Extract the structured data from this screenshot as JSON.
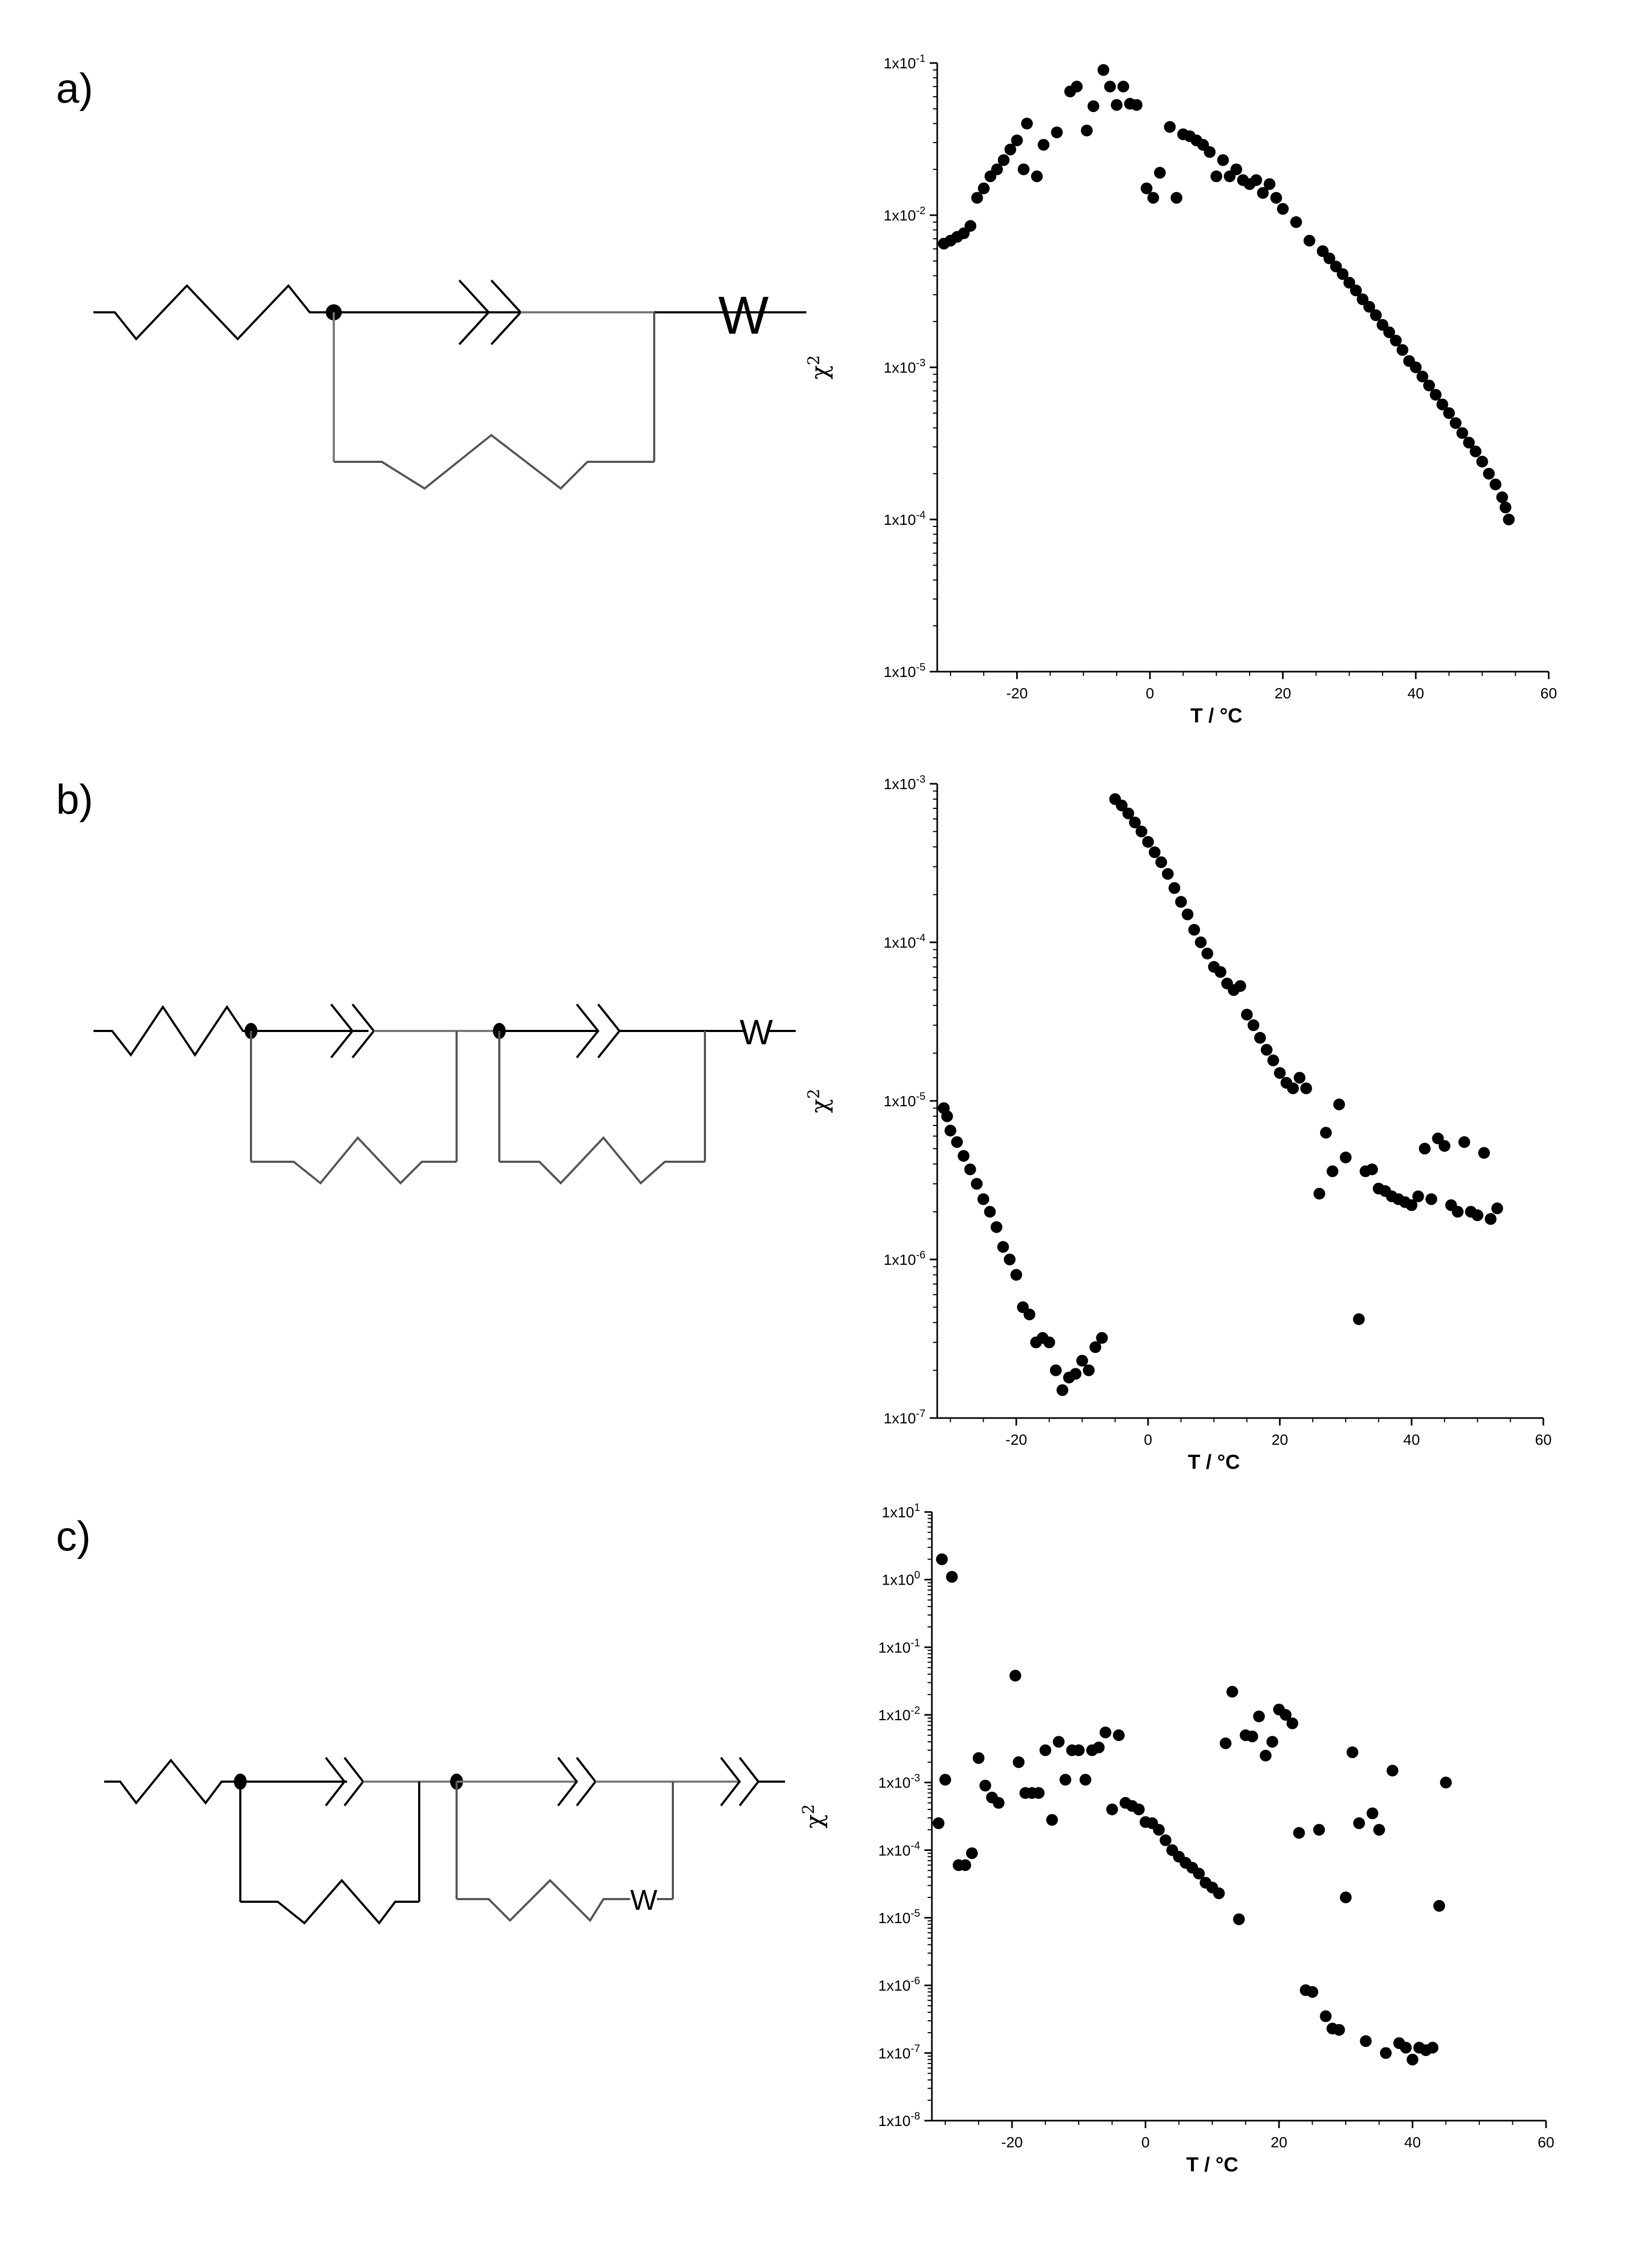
{
  "panels": [
    {
      "label": "a)",
      "circuit_w_label": "W"
    },
    {
      "label": "b)",
      "circuit_w_label": "W"
    },
    {
      "label": "c)",
      "circuit_w_label": "W"
    }
  ],
  "chart_data": [
    {
      "type": "scatter",
      "xlabel": "T / °C",
      "ylabel": "χ2",
      "xlim": [
        -32,
        60
      ],
      "ylim": [
        1e-05,
        0.1
      ],
      "y_scale": "log",
      "x_ticks": [
        -20,
        0,
        20,
        40,
        60
      ],
      "y_ticks": [
        {
          "v": 1e-05,
          "m": "1x10",
          "e": "-5"
        },
        {
          "v": 0.0001,
          "m": "1x10",
          "e": "-4"
        },
        {
          "v": 0.001,
          "m": "1x10",
          "e": "-3"
        },
        {
          "v": 0.01,
          "m": "1x10",
          "e": "-2"
        },
        {
          "v": 0.1,
          "m": "1x10",
          "e": "-1"
        }
      ],
      "points": [
        [
          -31,
          0.0065
        ],
        [
          -30,
          0.0068
        ],
        [
          -29,
          0.0072
        ],
        [
          -28,
          0.0076
        ],
        [
          -27,
          0.0085
        ],
        [
          -26,
          0.013
        ],
        [
          -25,
          0.015
        ],
        [
          -24,
          0.018
        ],
        [
          -23,
          0.02
        ],
        [
          -22,
          0.023
        ],
        [
          -21,
          0.027
        ],
        [
          -20,
          0.031
        ],
        [
          -19,
          0.02
        ],
        [
          -18.5,
          0.04
        ],
        [
          -17,
          0.018
        ],
        [
          -16,
          0.029
        ],
        [
          -14,
          0.035
        ],
        [
          -12,
          0.065
        ],
        [
          -11,
          0.07
        ],
        [
          -9.5,
          0.036
        ],
        [
          -8.5,
          0.052
        ],
        [
          -7,
          0.09
        ],
        [
          -6,
          0.07
        ],
        [
          -5,
          0.053
        ],
        [
          -4,
          0.07
        ],
        [
          -3,
          0.054
        ],
        [
          -2,
          0.053
        ],
        [
          -0.5,
          0.015
        ],
        [
          0.5,
          0.013
        ],
        [
          1.5,
          0.019
        ],
        [
          3,
          0.038
        ],
        [
          4,
          0.013
        ],
        [
          5,
          0.034
        ],
        [
          6,
          0.033
        ],
        [
          7,
          0.031
        ],
        [
          8,
          0.029
        ],
        [
          9,
          0.026
        ],
        [
          10,
          0.018
        ],
        [
          11,
          0.023
        ],
        [
          12,
          0.018
        ],
        [
          13,
          0.02
        ],
        [
          14,
          0.017
        ],
        [
          15,
          0.016
        ],
        [
          16,
          0.017
        ],
        [
          17,
          0.014
        ],
        [
          18,
          0.016
        ],
        [
          19,
          0.013
        ],
        [
          20,
          0.011
        ],
        [
          22,
          0.009
        ],
        [
          24,
          0.0068
        ],
        [
          26,
          0.0058
        ],
        [
          27,
          0.0052
        ],
        [
          28,
          0.0046
        ],
        [
          29,
          0.0041
        ],
        [
          30,
          0.0036
        ],
        [
          31,
          0.0032
        ],
        [
          32,
          0.0028
        ],
        [
          33,
          0.0025
        ],
        [
          34,
          0.0022
        ],
        [
          35,
          0.0019
        ],
        [
          36,
          0.0017
        ],
        [
          37,
          0.0015
        ],
        [
          38,
          0.0013
        ],
        [
          39,
          0.0011
        ],
        [
          40,
          0.001
        ],
        [
          41,
          0.00087
        ],
        [
          42,
          0.00076
        ],
        [
          43,
          0.00066
        ],
        [
          44,
          0.00057
        ],
        [
          45,
          0.0005
        ],
        [
          46,
          0.00043
        ],
        [
          47,
          0.00037
        ],
        [
          48,
          0.00032
        ],
        [
          49,
          0.00028
        ],
        [
          50,
          0.00024
        ],
        [
          51,
          0.0002
        ],
        [
          52,
          0.00017
        ],
        [
          53,
          0.00014
        ],
        [
          53.5,
          0.00012
        ],
        [
          54,
          0.0001
        ]
      ]
    },
    {
      "type": "scatter",
      "xlabel": "T / °C",
      "ylabel": "χ2",
      "xlim": [
        -32,
        60
      ],
      "ylim": [
        1e-07,
        0.001
      ],
      "y_scale": "log",
      "x_ticks": [
        -20,
        0,
        20,
        40,
        60
      ],
      "y_ticks": [
        {
          "v": 1e-07,
          "m": "1x10",
          "e": "-7"
        },
        {
          "v": 1e-06,
          "m": "1x10",
          "e": "-6"
        },
        {
          "v": 1e-05,
          "m": "1x10",
          "e": "-5"
        },
        {
          "v": 0.0001,
          "m": "1x10",
          "e": "-4"
        },
        {
          "v": 0.001,
          "m": "1x10",
          "e": "-3"
        }
      ],
      "points": [
        [
          -31,
          9e-06
        ],
        [
          -30.5,
          8e-06
        ],
        [
          -30,
          6.5e-06
        ],
        [
          -29,
          5.5e-06
        ],
        [
          -28,
          4.5e-06
        ],
        [
          -27,
          3.7e-06
        ],
        [
          -26,
          3e-06
        ],
        [
          -25,
          2.4e-06
        ],
        [
          -24,
          2e-06
        ],
        [
          -23,
          1.6e-06
        ],
        [
          -22,
          1.2e-06
        ],
        [
          -21,
          1e-06
        ],
        [
          -20,
          8e-07
        ],
        [
          -19,
          5e-07
        ],
        [
          -18,
          4.5e-07
        ],
        [
          -17,
          3e-07
        ],
        [
          -16,
          3.2e-07
        ],
        [
          -15,
          3e-07
        ],
        [
          -14,
          2e-07
        ],
        [
          -13,
          1.5e-07
        ],
        [
          -12,
          1.8e-07
        ],
        [
          -11,
          1.9e-07
        ],
        [
          -10,
          2.3e-07
        ],
        [
          -9,
          2e-07
        ],
        [
          -8,
          2.8e-07
        ],
        [
          -7,
          3.2e-07
        ],
        [
          -5,
          0.0008
        ],
        [
          -4,
          0.00073
        ],
        [
          -3,
          0.00065
        ],
        [
          -2,
          0.00057
        ],
        [
          -1,
          0.0005
        ],
        [
          0,
          0.00043
        ],
        [
          1,
          0.00037
        ],
        [
          2,
          0.00032
        ],
        [
          3,
          0.00027
        ],
        [
          4,
          0.00022
        ],
        [
          5,
          0.00018
        ],
        [
          6,
          0.00015
        ],
        [
          7,
          0.00012
        ],
        [
          8,
          0.0001
        ],
        [
          9,
          8.5e-05
        ],
        [
          10,
          7e-05
        ],
        [
          11,
          6.5e-05
        ],
        [
          12,
          5.5e-05
        ],
        [
          13,
          5e-05
        ],
        [
          14,
          5.3e-05
        ],
        [
          15,
          3.5e-05
        ],
        [
          16,
          3e-05
        ],
        [
          17,
          2.5e-05
        ],
        [
          18,
          2.1e-05
        ],
        [
          19,
          1.8e-05
        ],
        [
          20,
          1.5e-05
        ],
        [
          21,
          1.3e-05
        ],
        [
          22,
          1.2e-05
        ],
        [
          23,
          1.4e-05
        ],
        [
          24,
          1.2e-05
        ],
        [
          26,
          2.6e-06
        ],
        [
          27,
          6.3e-06
        ],
        [
          28,
          3.6e-06
        ],
        [
          29,
          9.5e-06
        ],
        [
          30,
          4.4e-06
        ],
        [
          32,
          4.2e-07
        ],
        [
          33,
          3.6e-06
        ],
        [
          34,
          3.7e-06
        ],
        [
          35,
          2.8e-06
        ],
        [
          36,
          2.7e-06
        ],
        [
          37,
          2.5e-06
        ],
        [
          38,
          2.4e-06
        ],
        [
          39,
          2.3e-06
        ],
        [
          40,
          2.2e-06
        ],
        [
          41,
          2.5e-06
        ],
        [
          42,
          5e-06
        ],
        [
          43,
          2.4e-06
        ],
        [
          44,
          5.8e-06
        ],
        [
          45,
          5.2e-06
        ],
        [
          46,
          2.2e-06
        ],
        [
          47,
          2e-06
        ],
        [
          48,
          5.5e-06
        ],
        [
          49,
          2e-06
        ],
        [
          50,
          1.9e-06
        ],
        [
          51,
          4.7e-06
        ],
        [
          52,
          1.8e-06
        ],
        [
          53,
          2.1e-06
        ]
      ]
    },
    {
      "type": "scatter",
      "xlabel": "T / °C",
      "ylabel": "χ2",
      "xlim": [
        -32,
        60
      ],
      "ylim": [
        1e-08,
        10
      ],
      "y_scale": "log",
      "x_ticks": [
        -20,
        0,
        20,
        40,
        60
      ],
      "y_ticks": [
        {
          "v": 1e-08,
          "m": "1x10",
          "e": "-8"
        },
        {
          "v": 1e-07,
          "m": "1x10",
          "e": "-7"
        },
        {
          "v": 1e-06,
          "m": "1x10",
          "e": "-6"
        },
        {
          "v": 1e-05,
          "m": "1x10",
          "e": "-5"
        },
        {
          "v": 0.0001,
          "m": "1x10",
          "e": "-4"
        },
        {
          "v": 0.001,
          "m": "1x10",
          "e": "-3"
        },
        {
          "v": 0.01,
          "m": "1x10",
          "e": "-2"
        },
        {
          "v": 0.1,
          "m": "1x10",
          "e": "-1"
        },
        {
          "v": 1,
          "m": "1x10",
          "e": "0"
        },
        {
          "v": 10,
          "m": "1x10",
          "e": "1"
        }
      ],
      "points": [
        [
          -31,
          0.00025
        ],
        [
          -30.5,
          2
        ],
        [
          -30,
          0.0011
        ],
        [
          -29,
          1.1
        ],
        [
          -28,
          6e-05
        ],
        [
          -27,
          6e-05
        ],
        [
          -26,
          9e-05
        ],
        [
          -25,
          0.0023
        ],
        [
          -24,
          0.0009
        ],
        [
          -23,
          0.0006
        ],
        [
          -22,
          0.0005
        ],
        [
          -19.5,
          0.038
        ],
        [
          -19,
          0.002
        ],
        [
          -18,
          0.0007
        ],
        [
          -17,
          0.0007
        ],
        [
          -16,
          0.0007
        ],
        [
          -15,
          0.003
        ],
        [
          -14,
          0.00028
        ],
        [
          -13,
          0.004
        ],
        [
          -12,
          0.0011
        ],
        [
          -11,
          0.003
        ],
        [
          -10,
          0.003
        ],
        [
          -9,
          0.0011
        ],
        [
          -8,
          0.003
        ],
        [
          -7,
          0.0033
        ],
        [
          -6,
          0.0055
        ],
        [
          -5,
          0.0004
        ],
        [
          -4,
          0.005
        ],
        [
          -3,
          0.0005
        ],
        [
          -2,
          0.00045
        ],
        [
          -1,
          0.0004
        ],
        [
          0,
          0.00026
        ],
        [
          1,
          0.00025
        ],
        [
          2,
          0.0002
        ],
        [
          3,
          0.00014
        ],
        [
          4,
          0.0001
        ],
        [
          5,
          8e-05
        ],
        [
          6,
          6.5e-05
        ],
        [
          7,
          5.5e-05
        ],
        [
          8,
          4.5e-05
        ],
        [
          9,
          3.3e-05
        ],
        [
          10,
          2.8e-05
        ],
        [
          11,
          2.3e-05
        ],
        [
          12,
          0.0038
        ],
        [
          13,
          0.022
        ],
        [
          14,
          9.5e-06
        ],
        [
          15,
          0.005
        ],
        [
          16,
          0.0048
        ],
        [
          17,
          0.0095
        ],
        [
          18,
          0.0025
        ],
        [
          19,
          0.004
        ],
        [
          20,
          0.012
        ],
        [
          21,
          0.01
        ],
        [
          22,
          0.0075
        ],
        [
          23,
          0.00018
        ],
        [
          24,
          8.5e-07
        ],
        [
          25,
          8e-07
        ],
        [
          26,
          0.0002
        ],
        [
          27,
          3.5e-07
        ],
        [
          28,
          2.3e-07
        ],
        [
          29,
          2.2e-07
        ],
        [
          30,
          2e-05
        ],
        [
          31,
          0.0028
        ],
        [
          32,
          0.00025
        ],
        [
          33,
          1.5e-07
        ],
        [
          34,
          0.00035
        ],
        [
          35,
          0.0002
        ],
        [
          36,
          1e-07
        ],
        [
          37,
          0.0015
        ],
        [
          38,
          1.4e-07
        ],
        [
          39,
          1.2e-07
        ],
        [
          40,
          8e-08
        ],
        [
          41,
          1.2e-07
        ],
        [
          42,
          1.1e-07
        ],
        [
          43,
          1.2e-07
        ],
        [
          44,
          1.5e-05
        ],
        [
          45,
          0.001
        ]
      ]
    }
  ]
}
